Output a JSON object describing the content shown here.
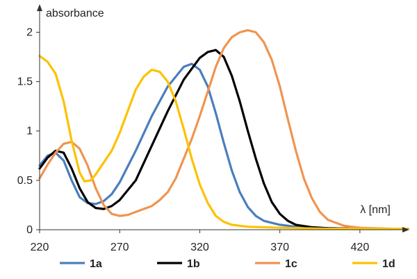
{
  "chart_data": {
    "type": "line",
    "xlabel": "λ [nm]",
    "ylabel": "absorbance",
    "xlim": [
      220,
      450
    ],
    "ylim": [
      0,
      2.2
    ],
    "x_ticks": [
      220,
      270,
      320,
      370,
      420
    ],
    "y_ticks": [
      0,
      0.5,
      1,
      1.5,
      2
    ],
    "x_tick_labels": [
      "220",
      "270",
      "320",
      "370",
      "420"
    ],
    "y_tick_labels": [
      "0",
      "0.5",
      "1",
      "1.5",
      "2"
    ],
    "grid": false,
    "legend_position": "bottom",
    "series": [
      {
        "name": "1a",
        "color": "#4a7ebb",
        "points": [
          [
            220,
            0.65
          ],
          [
            225,
            0.75
          ],
          [
            230,
            0.78
          ],
          [
            235,
            0.7
          ],
          [
            240,
            0.5
          ],
          [
            245,
            0.33
          ],
          [
            250,
            0.27
          ],
          [
            255,
            0.26
          ],
          [
            260,
            0.29
          ],
          [
            265,
            0.36
          ],
          [
            270,
            0.48
          ],
          [
            280,
            0.8
          ],
          [
            290,
            1.15
          ],
          [
            300,
            1.45
          ],
          [
            310,
            1.65
          ],
          [
            315,
            1.68
          ],
          [
            320,
            1.62
          ],
          [
            325,
            1.45
          ],
          [
            330,
            1.18
          ],
          [
            335,
            0.88
          ],
          [
            340,
            0.6
          ],
          [
            345,
            0.38
          ],
          [
            350,
            0.23
          ],
          [
            355,
            0.14
          ],
          [
            360,
            0.09
          ],
          [
            370,
            0.05
          ],
          [
            380,
            0.03
          ],
          [
            390,
            0.02
          ],
          [
            400,
            0.015
          ],
          [
            420,
            0.01
          ],
          [
            450,
            0.01
          ]
        ]
      },
      {
        "name": "1b",
        "color": "#000000",
        "points": [
          [
            220,
            0.62
          ],
          [
            225,
            0.73
          ],
          [
            230,
            0.8
          ],
          [
            235,
            0.78
          ],
          [
            240,
            0.62
          ],
          [
            245,
            0.42
          ],
          [
            250,
            0.28
          ],
          [
            255,
            0.22
          ],
          [
            260,
            0.21
          ],
          [
            265,
            0.24
          ],
          [
            270,
            0.3
          ],
          [
            280,
            0.5
          ],
          [
            290,
            0.85
          ],
          [
            300,
            1.2
          ],
          [
            310,
            1.52
          ],
          [
            320,
            1.74
          ],
          [
            325,
            1.8
          ],
          [
            330,
            1.82
          ],
          [
            335,
            1.75
          ],
          [
            340,
            1.56
          ],
          [
            345,
            1.3
          ],
          [
            350,
            1.0
          ],
          [
            355,
            0.72
          ],
          [
            360,
            0.47
          ],
          [
            365,
            0.28
          ],
          [
            370,
            0.16
          ],
          [
            375,
            0.09
          ],
          [
            380,
            0.05
          ],
          [
            390,
            0.025
          ],
          [
            400,
            0.015
          ],
          [
            420,
            0.01
          ],
          [
            450,
            0.01
          ]
        ]
      },
      {
        "name": "1c",
        "color": "#f0944f",
        "points": [
          [
            220,
            0.52
          ],
          [
            225,
            0.66
          ],
          [
            230,
            0.78
          ],
          [
            235,
            0.87
          ],
          [
            240,
            0.89
          ],
          [
            245,
            0.82
          ],
          [
            250,
            0.65
          ],
          [
            255,
            0.42
          ],
          [
            260,
            0.25
          ],
          [
            265,
            0.16
          ],
          [
            270,
            0.14
          ],
          [
            275,
            0.15
          ],
          [
            280,
            0.18
          ],
          [
            290,
            0.24
          ],
          [
            295,
            0.3
          ],
          [
            300,
            0.38
          ],
          [
            305,
            0.52
          ],
          [
            310,
            0.72
          ],
          [
            315,
            0.92
          ],
          [
            320,
            1.15
          ],
          [
            325,
            1.4
          ],
          [
            330,
            1.65
          ],
          [
            335,
            1.84
          ],
          [
            340,
            1.95
          ],
          [
            345,
            2.0
          ],
          [
            350,
            2.02
          ],
          [
            355,
            2.0
          ],
          [
            360,
            1.9
          ],
          [
            365,
            1.72
          ],
          [
            370,
            1.45
          ],
          [
            375,
            1.12
          ],
          [
            380,
            0.8
          ],
          [
            385,
            0.52
          ],
          [
            390,
            0.32
          ],
          [
            395,
            0.18
          ],
          [
            400,
            0.1
          ],
          [
            410,
            0.04
          ],
          [
            420,
            0.02
          ],
          [
            440,
            0.01
          ],
          [
            450,
            0.01
          ]
        ]
      },
      {
        "name": "1d",
        "color": "#fcc200",
        "points": [
          [
            220,
            1.76
          ],
          [
            225,
            1.7
          ],
          [
            230,
            1.58
          ],
          [
            235,
            1.3
          ],
          [
            240,
            0.9
          ],
          [
            245,
            0.58
          ],
          [
            248,
            0.49
          ],
          [
            252,
            0.5
          ],
          [
            255,
            0.56
          ],
          [
            260,
            0.68
          ],
          [
            265,
            0.8
          ],
          [
            270,
            0.98
          ],
          [
            275,
            1.2
          ],
          [
            280,
            1.42
          ],
          [
            285,
            1.55
          ],
          [
            290,
            1.62
          ],
          [
            295,
            1.6
          ],
          [
            300,
            1.5
          ],
          [
            305,
            1.3
          ],
          [
            310,
            1.02
          ],
          [
            315,
            0.72
          ],
          [
            320,
            0.46
          ],
          [
            325,
            0.27
          ],
          [
            330,
            0.14
          ],
          [
            335,
            0.08
          ],
          [
            340,
            0.05
          ],
          [
            350,
            0.03
          ],
          [
            370,
            0.02
          ],
          [
            400,
            0.01
          ],
          [
            450,
            0.01
          ]
        ]
      }
    ]
  }
}
